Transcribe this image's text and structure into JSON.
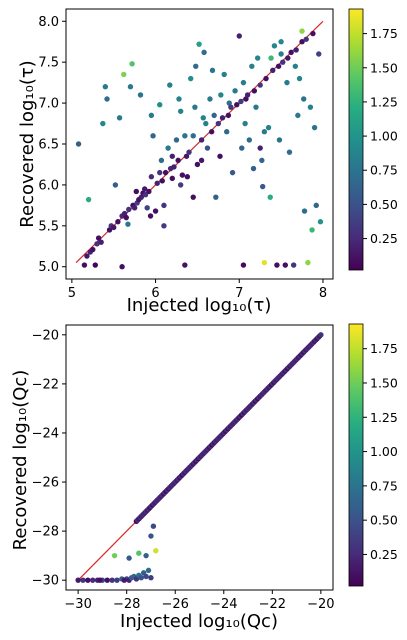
{
  "chart_data": [
    {
      "type": "scatter",
      "xlabel": "Injected log₁₀(τ)",
      "ylabel": "Recovered log₁₀(τ)",
      "xlim": [
        4.93,
        8.12
      ],
      "ylim": [
        4.85,
        8.15
      ],
      "xticks": [
        "5",
        "6",
        "7",
        "8"
      ],
      "yticks": [
        "5.0",
        "5.5",
        "6.0",
        "6.5",
        "7.0",
        "7.5",
        "8.0"
      ],
      "reference_line": {
        "x": [
          5.05,
          8.0
        ],
        "y": [
          5.05,
          8.0
        ],
        "color": "#d62728"
      },
      "colorbar": {
        "min": 0.02,
        "max": 1.93,
        "ticks": [
          "0.25",
          "0.50",
          "0.75",
          "1.00",
          "1.25",
          "1.50",
          "1.75"
        ],
        "colormap": "viridis"
      },
      "points": [
        [
          5.08,
          6.5,
          0.6
        ],
        [
          5.15,
          5.02,
          0.1
        ],
        [
          5.18,
          5.13,
          0.15
        ],
        [
          5.2,
          5.82,
          1.2
        ],
        [
          5.22,
          5.18,
          0.2
        ],
        [
          5.25,
          5.21,
          0.1
        ],
        [
          5.28,
          5.02,
          0.05
        ],
        [
          5.3,
          5.28,
          0.3
        ],
        [
          5.32,
          5.35,
          0.1
        ],
        [
          5.35,
          5.3,
          0.2
        ],
        [
          5.37,
          6.75,
          0.9
        ],
        [
          5.4,
          7.2,
          0.8
        ],
        [
          5.42,
          7.05,
          0.7
        ],
        [
          5.45,
          5.45,
          0.1
        ],
        [
          5.47,
          5.5,
          0.3
        ],
        [
          5.5,
          5.48,
          0.15
        ],
        [
          5.52,
          6.0,
          0.6
        ],
        [
          5.55,
          5.55,
          0.1
        ],
        [
          5.57,
          6.82,
          0.8
        ],
        [
          5.6,
          5.62,
          0.25
        ],
        [
          5.62,
          7.35,
          1.55
        ],
        [
          5.63,
          5.65,
          0.2
        ],
        [
          5.65,
          5.6,
          0.1
        ],
        [
          5.67,
          5.52,
          0.8
        ],
        [
          5.68,
          5.7,
          0.3
        ],
        [
          5.7,
          7.2,
          0.8
        ],
        [
          5.72,
          7.48,
          1.4
        ],
        [
          5.73,
          5.75,
          0.1
        ],
        [
          5.75,
          5.72,
          0.2
        ],
        [
          5.77,
          5.92,
          0.1
        ],
        [
          5.78,
          5.78,
          0.35
        ],
        [
          5.8,
          5.82,
          0.1
        ],
        [
          5.82,
          7.1,
          0.75
        ],
        [
          5.83,
          5.85,
          0.2
        ],
        [
          5.85,
          5.9,
          0.1
        ],
        [
          5.87,
          5.95,
          0.15
        ],
        [
          5.88,
          5.88,
          0.3
        ],
        [
          5.9,
          5.72,
          0.4
        ],
        [
          5.92,
          5.92,
          0.1
        ],
        [
          5.94,
          5.62,
          0.1
        ],
        [
          5.95,
          6.85,
          0.8
        ],
        [
          5.97,
          6.6,
          0.65
        ],
        [
          6.0,
          5.68,
          0.1
        ],
        [
          6.02,
          6.02,
          0.2
        ],
        [
          6.05,
          6.98,
          0.95
        ],
        [
          6.07,
          6.3,
          0.7
        ],
        [
          6.08,
          6.05,
          0.1
        ],
        [
          6.1,
          5.75,
          0.3
        ],
        [
          6.12,
          6.15,
          0.1
        ],
        [
          6.15,
          6.45,
          0.8
        ],
        [
          6.17,
          7.22,
          0.85
        ],
        [
          6.18,
          6.2,
          0.25
        ],
        [
          6.2,
          6.08,
          0.1
        ],
        [
          6.22,
          6.22,
          0.2
        ],
        [
          6.25,
          6.55,
          0.65
        ],
        [
          6.27,
          6.3,
          0.1
        ],
        [
          6.28,
          7.05,
          0.85
        ],
        [
          6.3,
          6.0,
          0.35
        ],
        [
          6.32,
          6.12,
          0.1
        ],
        [
          6.35,
          6.6,
          0.75
        ],
        [
          6.37,
          6.35,
          0.15
        ],
        [
          6.38,
          6.1,
          0.1
        ],
        [
          6.4,
          6.4,
          0.3
        ],
        [
          6.42,
          7.3,
          0.95
        ],
        [
          6.45,
          6.6,
          0.7
        ],
        [
          6.47,
          6.95,
          0.8
        ],
        [
          6.48,
          7.45,
          0.7
        ],
        [
          6.5,
          6.25,
          0.1
        ],
        [
          6.52,
          7.72,
          1.1
        ],
        [
          6.55,
          6.55,
          0.2
        ],
        [
          6.57,
          6.82,
          0.85
        ],
        [
          6.58,
          7.62,
          0.7
        ],
        [
          6.6,
          6.75,
          0.85
        ],
        [
          6.62,
          6.45,
          0.5
        ],
        [
          6.65,
          7.05,
          0.8
        ],
        [
          6.67,
          6.65,
          0.1
        ],
        [
          6.68,
          7.4,
          0.75
        ],
        [
          6.7,
          6.85,
          0.65
        ],
        [
          6.72,
          5.85,
          0.6
        ],
        [
          6.75,
          6.75,
          0.3
        ],
        [
          6.77,
          6.35,
          0.1
        ],
        [
          6.78,
          7.1,
          0.9
        ],
        [
          6.8,
          6.82,
          0.2
        ],
        [
          6.82,
          7.35,
          0.85
        ],
        [
          6.85,
          6.65,
          0.65
        ],
        [
          6.87,
          6.85,
          0.1
        ],
        [
          6.88,
          7.0,
          0.7
        ],
        [
          6.9,
          6.95,
          0.35
        ],
        [
          6.92,
          6.15,
          0.55
        ],
        [
          6.95,
          7.15,
          0.8
        ],
        [
          6.97,
          6.98,
          0.1
        ],
        [
          7.0,
          7.82,
          0.2
        ],
        [
          7.02,
          7.02,
          0.35
        ],
        [
          7.03,
          6.45,
          0.65
        ],
        [
          7.05,
          7.25,
          0.8
        ],
        [
          7.07,
          6.75,
          0.85
        ],
        [
          7.08,
          7.05,
          0.1
        ],
        [
          7.1,
          7.1,
          0.2
        ],
        [
          7.12,
          6.55,
          0.7
        ],
        [
          7.15,
          7.45,
          0.85
        ],
        [
          7.17,
          6.2,
          0.6
        ],
        [
          7.18,
          7.15,
          0.1
        ],
        [
          7.2,
          6.95,
          0.8
        ],
        [
          7.22,
          7.55,
          0.9
        ],
        [
          7.25,
          7.22,
          0.3
        ],
        [
          7.27,
          6.3,
          0.65
        ],
        [
          7.28,
          5.98,
          0.55
        ],
        [
          7.3,
          5.05,
          1.85
        ],
        [
          7.32,
          7.3,
          0.1
        ],
        [
          7.35,
          6.7,
          0.85
        ],
        [
          7.37,
          5.85,
          1.2
        ],
        [
          7.38,
          7.55,
          1.3
        ],
        [
          7.4,
          7.4,
          0.2
        ],
        [
          7.42,
          7.7,
          0.9
        ],
        [
          7.45,
          5.02,
          0.1
        ],
        [
          7.47,
          7.45,
          0.1
        ],
        [
          7.48,
          6.55,
          0.75
        ],
        [
          7.5,
          7.6,
          0.85
        ],
        [
          7.52,
          7.5,
          0.3
        ],
        [
          7.55,
          5.02,
          0.1
        ],
        [
          7.57,
          7.25,
          0.8
        ],
        [
          7.58,
          7.55,
          0.15
        ],
        [
          7.6,
          6.4,
          0.7
        ],
        [
          7.62,
          7.62,
          0.1
        ],
        [
          7.65,
          5.02,
          0.3
        ],
        [
          7.67,
          7.45,
          0.85
        ],
        [
          7.68,
          7.65,
          0.2
        ],
        [
          7.7,
          6.85,
          0.8
        ],
        [
          7.72,
          7.3,
          0.9
        ],
        [
          7.75,
          7.75,
          0.1
        ],
        [
          7.77,
          7.05,
          0.75
        ],
        [
          7.78,
          5.68,
          0.7
        ],
        [
          7.8,
          7.78,
          0.3
        ],
        [
          7.82,
          5.05,
          1.6
        ],
        [
          7.85,
          6.95,
          0.85
        ],
        [
          7.87,
          5.45,
          1.3
        ],
        [
          7.88,
          7.85,
          0.1
        ],
        [
          7.9,
          6.7,
          0.75
        ],
        [
          7.92,
          5.75,
          0.65
        ],
        [
          7.95,
          7.6,
          0.4
        ],
        [
          7.97,
          5.55,
          1.0
        ],
        [
          5.6,
          5.0,
          0.1
        ],
        [
          6.35,
          5.02,
          0.12
        ],
        [
          6.45,
          5.85,
          0.1
        ],
        [
          7.25,
          6.45,
          0.2
        ],
        [
          6.05,
          6.15,
          0.3
        ],
        [
          6.2,
          6.35,
          0.2
        ],
        [
          5.95,
          6.1,
          0.25
        ],
        [
          6.55,
          6.3,
          0.15
        ],
        [
          7.05,
          5.02,
          0.08
        ],
        [
          6.1,
          5.5,
          0.35
        ],
        [
          6.3,
          6.9,
          0.85
        ],
        [
          7.3,
          6.65,
          0.8
        ],
        [
          7.5,
          7.75,
          0.9
        ],
        [
          7.75,
          7.88,
          1.6
        ]
      ]
    },
    {
      "type": "scatter",
      "xlabel": "Injected log₁₀(Qᴄ)",
      "ylabel": "Recovered log₁₀(Qᴄ)",
      "xlim": [
        -30.5,
        -19.5
      ],
      "ylim": [
        -30.4,
        -19.6
      ],
      "xticks": [
        "−30",
        "−28",
        "−26",
        "−24",
        "−22",
        "−20"
      ],
      "yticks": [
        "−30",
        "−28",
        "−26",
        "−24",
        "−22",
        "−20"
      ],
      "reference_line": {
        "x": [
          -30.0,
          -20.0
        ],
        "y": [
          -30.0,
          -20.0
        ],
        "color": "#d62728"
      },
      "colorbar": {
        "min": 0.02,
        "max": 1.93,
        "ticks": [
          "0.25",
          "0.50",
          "0.75",
          "1.00",
          "1.25",
          "1.50",
          "1.75"
        ],
        "colormap": "viridis"
      },
      "diagonal_run": {
        "from": -27.6,
        "to": -20.0,
        "count": 150
      },
      "points": [
        [
          -30.0,
          -30.0,
          0.15
        ],
        [
          -29.8,
          -30.0,
          0.3
        ],
        [
          -29.6,
          -30.0,
          0.1
        ],
        [
          -29.4,
          -30.0,
          0.25
        ],
        [
          -29.2,
          -30.0,
          0.2
        ],
        [
          -29.0,
          -30.0,
          0.45
        ],
        [
          -28.8,
          -30.0,
          0.1
        ],
        [
          -28.6,
          -30.0,
          0.3
        ],
        [
          -28.4,
          -30.0,
          0.35
        ],
        [
          -28.2,
          -29.95,
          0.6
        ],
        [
          -28.0,
          -29.95,
          0.4
        ],
        [
          -27.9,
          -30.0,
          0.2
        ],
        [
          -27.8,
          -29.9,
          0.55
        ],
        [
          -27.7,
          -29.85,
          0.65
        ],
        [
          -27.6,
          -29.95,
          0.3
        ],
        [
          -27.5,
          -29.8,
          0.75
        ],
        [
          -27.4,
          -29.9,
          0.5
        ],
        [
          -27.3,
          -29.7,
          0.6
        ],
        [
          -27.2,
          -29.85,
          0.45
        ],
        [
          -27.1,
          -29.6,
          0.7
        ],
        [
          -27.0,
          -29.9,
          0.35
        ],
        [
          -28.5,
          -29.0,
          1.5
        ],
        [
          -27.5,
          -28.9,
          1.4
        ],
        [
          -26.8,
          -28.8,
          1.8
        ],
        [
          -27.0,
          -28.2,
          0.5
        ],
        [
          -26.9,
          -27.8,
          0.45
        ],
        [
          -27.2,
          -29.0,
          0.6
        ],
        [
          -28.1,
          -30.0,
          0.15
        ],
        [
          -29.1,
          -30.0,
          0.1
        ],
        [
          -27.9,
          -29.1,
          0.55
        ]
      ]
    }
  ]
}
